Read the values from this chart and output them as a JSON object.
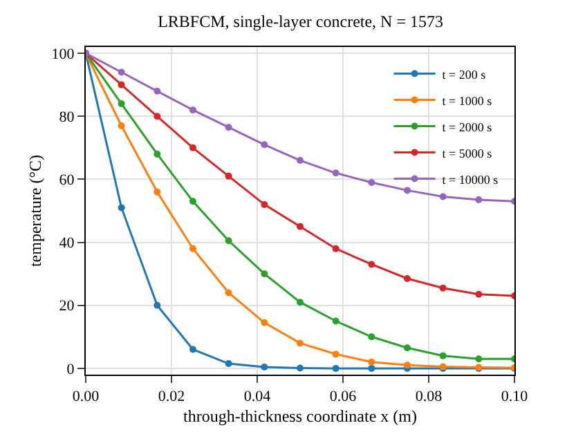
{
  "chart_data": {
    "type": "line",
    "title": "LRBFCM, single-layer concrete, N = 1573",
    "xlabel": "through-thickness coordinate x (m)",
    "ylabel": "temperature (°C)",
    "x": [
      0,
      0.00833,
      0.01667,
      0.025,
      0.03333,
      0.04167,
      0.05,
      0.05833,
      0.06667,
      0.075,
      0.08333,
      0.09167,
      0.1
    ],
    "series": [
      {
        "name": "t = 200 s",
        "color": "#1f77b4",
        "values": [
          100,
          51,
          20,
          6,
          1.5,
          0.4,
          0.1,
          0,
          0,
          0,
          0,
          0,
          0
        ]
      },
      {
        "name": "t = 1000 s",
        "color": "#ff7f0e",
        "values": [
          100,
          77,
          56,
          38,
          24,
          14.5,
          8,
          4.5,
          2,
          1,
          0.5,
          0.3,
          0.2
        ]
      },
      {
        "name": "t = 2000 s",
        "color": "#2ca02c",
        "values": [
          100,
          84,
          68,
          53,
          40.5,
          30,
          21,
          15,
          10,
          6.5,
          4,
          3,
          3
        ]
      },
      {
        "name": "t = 5000 s",
        "color": "#d62728",
        "values": [
          100,
          90,
          80,
          70,
          61,
          52,
          45,
          38,
          33,
          28.5,
          25.5,
          23.5,
          23
        ]
      },
      {
        "name": "t = 10000 s",
        "color": "#9467bd",
        "values": [
          100,
          94,
          88,
          82,
          76.5,
          71,
          66,
          62,
          59,
          56.5,
          54.5,
          53.5,
          53
        ]
      }
    ],
    "xlim": [
      0,
      0.1
    ],
    "xticks": [
      {
        "value": 0,
        "label": "0.00"
      },
      0.02,
      0.04,
      0.06,
      0.08,
      {
        "value": 0.1,
        "label": "0.10"
      }
    ],
    "ylim": [
      -2,
      102
    ],
    "yticks": [
      0,
      20,
      40,
      60,
      80,
      100
    ],
    "grid": true,
    "legend": "top right",
    "marker": "circle",
    "line_style": "solid"
  }
}
